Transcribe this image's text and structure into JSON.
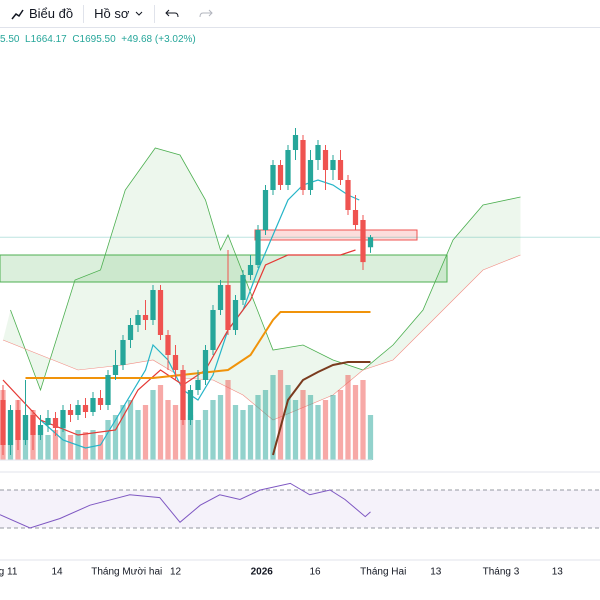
{
  "toolbar": {
    "chart_button": "Biểu đồ",
    "profile_button": "Hồ sơ"
  },
  "legend": {
    "open": "5.50",
    "low": "L1664.17",
    "close": "C1695.50",
    "change": "+49.68 (+3.02%)"
  },
  "chart_data": {
    "type": "candlestick",
    "xlim": [
      -0.4,
      79.6
    ],
    "ylim": [
      1250,
      2110
    ],
    "up_color": "#26a69a",
    "down_color": "#ef5350",
    "candles": {
      "open": [
        1370,
        1280,
        1350,
        1290,
        1340,
        1300,
        1320,
        1334,
        1314,
        1350,
        1340,
        1360,
        1346,
        1374,
        1360,
        1420,
        1440,
        1490,
        1520,
        1540,
        1530,
        1590,
        1500,
        1460,
        1430,
        1330,
        1390,
        1410,
        1470,
        1550,
        1600,
        1510,
        1570,
        1620,
        1640,
        1710,
        1790,
        1840,
        1800,
        1870,
        1890,
        1790,
        1850,
        1870,
        1830,
        1850,
        1810,
        1750,
        1730,
        1675.5
      ],
      "high": [
        1400,
        1360,
        1370,
        1410,
        1350,
        1340,
        1350,
        1346,
        1360,
        1362,
        1370,
        1374,
        1386,
        1390,
        1430,
        1470,
        1500,
        1534,
        1550,
        1570,
        1600,
        1600,
        1510,
        1480,
        1440,
        1400,
        1430,
        1480,
        1560,
        1610,
        1670,
        1580,
        1630,
        1660,
        1720,
        1800,
        1850,
        1850,
        1880,
        1914,
        1900,
        1870,
        1890,
        1880,
        1860,
        1870,
        1820,
        1780,
        1740,
        1700
      ],
      "low": [
        1260,
        1260,
        1270,
        1280,
        1270,
        1290,
        1306,
        1298,
        1306,
        1326,
        1330,
        1334,
        1338,
        1350,
        1350,
        1410,
        1430,
        1474,
        1506,
        1510,
        1520,
        1490,
        1430,
        1410,
        1320,
        1320,
        1380,
        1400,
        1460,
        1540,
        1500,
        1500,
        1560,
        1610,
        1634,
        1700,
        1780,
        1790,
        1790,
        1850,
        1780,
        1780,
        1830,
        1790,
        1810,
        1800,
        1740,
        1710,
        1630,
        1664.17
      ],
      "close": [
        1280,
        1350,
        1290,
        1340,
        1300,
        1320,
        1334,
        1314,
        1350,
        1340,
        1360,
        1346,
        1374,
        1360,
        1420,
        1440,
        1490,
        1520,
        1540,
        1530,
        1590,
        1500,
        1460,
        1430,
        1330,
        1390,
        1410,
        1470,
        1550,
        1600,
        1510,
        1570,
        1620,
        1640,
        1710,
        1790,
        1840,
        1800,
        1870,
        1900,
        1790,
        1850,
        1880,
        1830,
        1850,
        1810,
        1750,
        1720,
        1645.82,
        1695.5
      ]
    },
    "volume": {
      "ylim": [
        0,
        200
      ],
      "values": [
        70,
        40,
        60,
        45,
        50,
        30,
        25,
        30,
        35,
        25,
        30,
        28,
        30,
        25,
        40,
        45,
        55,
        60,
        50,
        55,
        70,
        75,
        60,
        55,
        85,
        45,
        40,
        50,
        60,
        65,
        80,
        55,
        50,
        55,
        65,
        70,
        85,
        90,
        75,
        60,
        70,
        65,
        55,
        60,
        65,
        70,
        85,
        75,
        80,
        45
      ]
    },
    "lines": [
      {
        "color": "#26b5c8",
        "x": [
          5,
          8,
          11,
          13,
          15,
          17,
          19,
          20,
          22,
          24,
          26,
          28,
          30,
          32,
          34,
          36,
          38,
          40,
          42,
          44,
          46,
          47.5
        ],
        "values": [
          1330,
          1290,
          1274,
          1280,
          1330,
          1380,
          1430,
          1480,
          1450,
          1390,
          1370,
          1420,
          1510,
          1550,
          1630,
          1700,
          1770,
          1800,
          1810,
          1800,
          1780,
          1770
        ]
      },
      {
        "color": "#e53935",
        "x": [
          0,
          5,
          10,
          15,
          18,
          21,
          24,
          27,
          30,
          33,
          35,
          38,
          40,
          45,
          47
        ],
        "values": [
          1410,
          1330,
          1300,
          1310,
          1390,
          1430,
          1400,
          1430,
          1510,
          1570,
          1640,
          1660,
          1660,
          1660,
          1670
        ]
      },
      {
        "color": "#f0930a",
        "x": [
          3,
          10,
          20,
          30,
          33,
          36,
          37,
          45,
          49
        ],
        "values": [
          1414,
          1414,
          1414,
          1430,
          1460,
          1530,
          1546,
          1546,
          1546
        ]
      },
      {
        "color": "#7a3b1e",
        "x": [
          36,
          38,
          40,
          42,
          44,
          46,
          49
        ],
        "values": [
          1260,
          1370,
          1410,
          1426,
          1440,
          1446,
          1446
        ]
      }
    ],
    "cloud": {
      "color": "#4caf50",
      "span_a": {
        "x": [
          1,
          5,
          9.6,
          13,
          16.3,
          20.3,
          23.6,
          27,
          29,
          30,
          36,
          40,
          44,
          48,
          52,
          56,
          60,
          64,
          69
        ],
        "values": [
          1550,
          1390,
          1610,
          1630,
          1790,
          1874,
          1860,
          1770,
          1670,
          1700,
          1470,
          1480,
          1450,
          1430,
          1480,
          1550,
          1690,
          1760,
          1776
        ]
      },
      "span_b": {
        "color": "#f28b82",
        "x": [
          0,
          10,
          16,
          20,
          24,
          28,
          32,
          36,
          44,
          48,
          52,
          56,
          60,
          64,
          69
        ],
        "values": [
          1490,
          1430,
          1440,
          1450,
          1414,
          1410,
          1380,
          1330,
          1380,
          1430,
          1450,
          1510,
          1570,
          1630,
          1660
        ]
      }
    },
    "zones": [
      {
        "color": "#4caf50",
        "x": [
          -0.4,
          59.2
        ],
        "range": [
          1606,
          1660
        ]
      },
      {
        "color": "#ef5350",
        "x": [
          33.6,
          55.2
        ],
        "range": [
          1690,
          1710
        ]
      }
    ],
    "rsi": {
      "color": "#7e57c2",
      "ylim": [
        0,
        100
      ],
      "levels": [
        70,
        30
      ],
      "x": [
        -0.4,
        3.6,
        7.6,
        11.6,
        16.9,
        20.9,
        23.6,
        26.3,
        28.9,
        31.6,
        34.3,
        38.3,
        40.9,
        43.6,
        45.6,
        48.3,
        49
      ],
      "values": [
        44,
        30,
        40,
        54,
        65,
        62,
        36,
        54,
        65,
        60,
        70,
        77,
        65,
        70,
        60,
        42,
        47
      ]
    },
    "xticks": [
      {
        "value": 0.3,
        "label": "ng 11"
      },
      {
        "value": 7.2,
        "label": "14"
      },
      {
        "value": 16.5,
        "label": "Tháng Mười hai"
      },
      {
        "value": 23,
        "label": "12"
      },
      {
        "value": 34.5,
        "label": "2026"
      },
      {
        "value": 41.6,
        "label": "16"
      },
      {
        "value": 50.7,
        "label": "Tháng Hai"
      },
      {
        "value": 57.7,
        "label": "13"
      },
      {
        "value": 66.4,
        "label": "Tháng 3"
      },
      {
        "value": 73.9,
        "label": "13"
      }
    ]
  }
}
